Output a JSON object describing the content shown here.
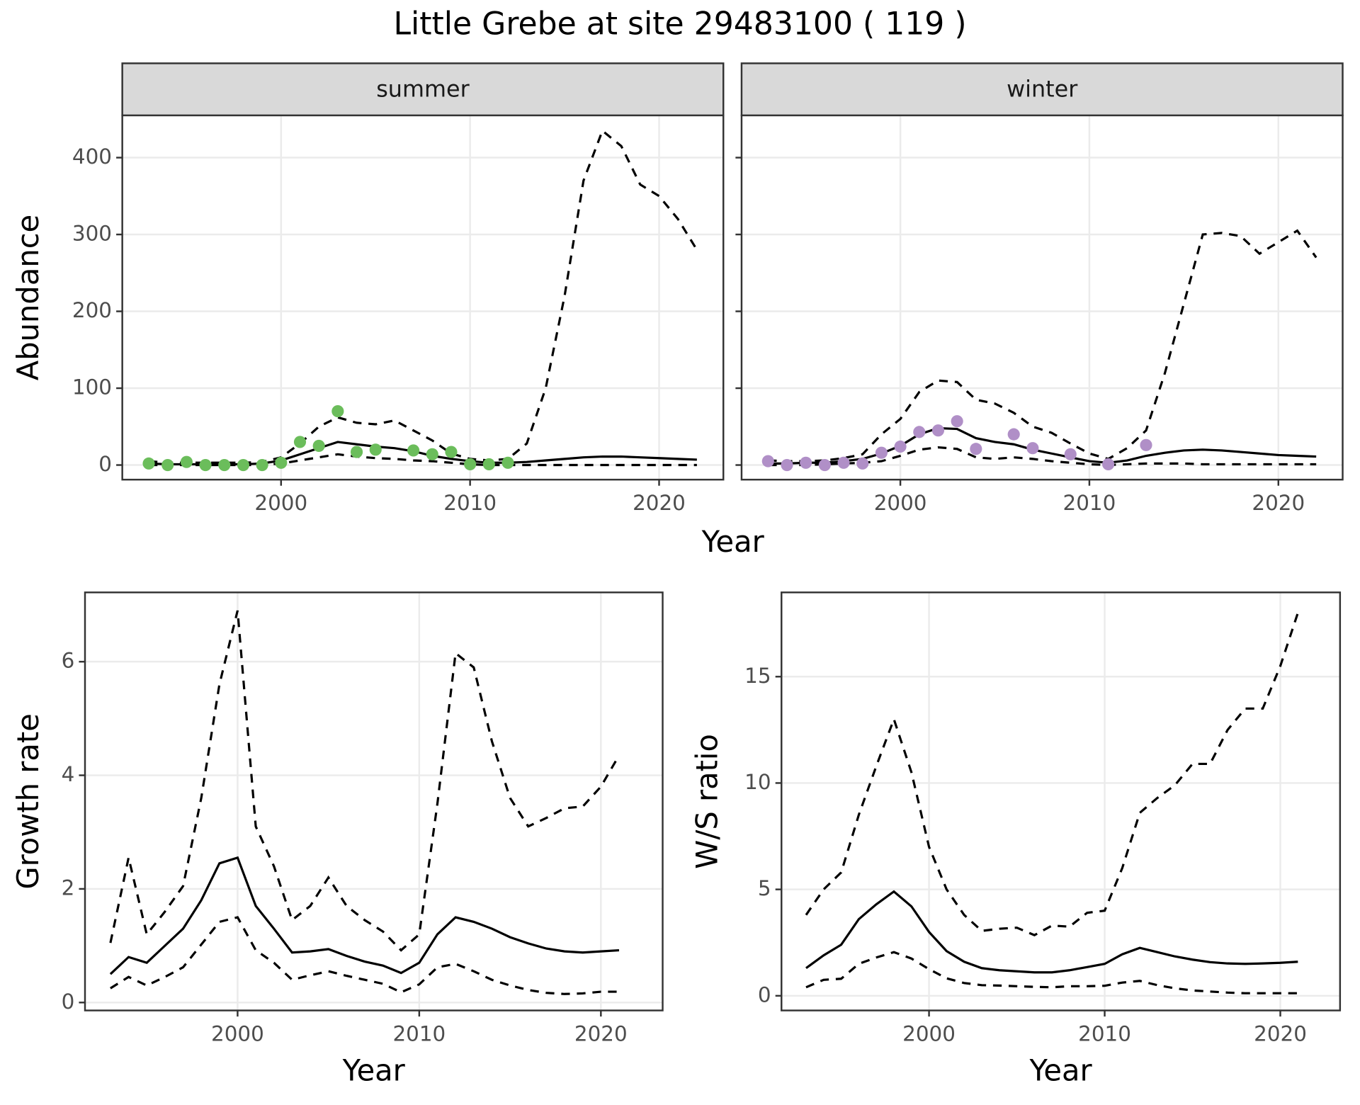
{
  "title": "Little Grebe at site 29483100 ( 119 )",
  "chart_data": [
    {
      "type": "line",
      "panel_title": "summer",
      "ylabel": "Abundance",
      "xlabel": "Year",
      "x": [
        1993,
        1994,
        1995,
        1996,
        1997,
        1998,
        1999,
        2000,
        2001,
        2002,
        2003,
        2004,
        2005,
        2006,
        2007,
        2008,
        2009,
        2010,
        2011,
        2012,
        2013,
        2014,
        2015,
        2016,
        2017,
        2018,
        2019,
        2020,
        2021,
        2022
      ],
      "xlim": [
        1991.6,
        2023.4
      ],
      "ylim": [
        -19,
        455
      ],
      "xticks": [
        2000,
        2010,
        2020
      ],
      "yticks": [
        0,
        100,
        200,
        300,
        400
      ],
      "grid": true,
      "series": [
        {
          "color": "#000000",
          "linestyle": "solid",
          "values": [
            2,
            1,
            1,
            1,
            1,
            1,
            2,
            6,
            14,
            22,
            30,
            27,
            24,
            22,
            18,
            12,
            8,
            5,
            3,
            3,
            4,
            6,
            8,
            10,
            11,
            11,
            10,
            9,
            8,
            7
          ]
        },
        {
          "color": "#000000",
          "linestyle": "dashed",
          "values": [
            5,
            3,
            3,
            3,
            3,
            3,
            4,
            10,
            28,
            50,
            62,
            55,
            53,
            58,
            45,
            32,
            15,
            8,
            6,
            8,
            28,
            100,
            220,
            370,
            435,
            415,
            365,
            350,
            320,
            280
          ]
        },
        {
          "color": "#000000",
          "linestyle": "dashed",
          "values": [
            0,
            0,
            0,
            0,
            0,
            0,
            0,
            2,
            6,
            10,
            14,
            11,
            9,
            8,
            6,
            5,
            3,
            1,
            0,
            0,
            0,
            0,
            0,
            0,
            0,
            0,
            0,
            0,
            0,
            0
          ]
        },
        {
          "color": "#6BBD5B",
          "marker": "circle",
          "values": [
            2,
            0,
            4,
            0,
            0,
            0,
            0,
            3,
            30,
            25,
            70,
            17,
            20,
            null,
            19,
            14,
            17,
            1,
            1,
            3,
            null,
            null,
            null,
            null,
            null,
            null,
            null,
            null,
            null,
            null
          ]
        }
      ]
    },
    {
      "type": "line",
      "panel_title": "winter",
      "x": [
        1993,
        1994,
        1995,
        1996,
        1997,
        1998,
        1999,
        2000,
        2001,
        2002,
        2003,
        2004,
        2005,
        2006,
        2007,
        2008,
        2009,
        2010,
        2011,
        2012,
        2013,
        2014,
        2015,
        2016,
        2017,
        2018,
        2019,
        2020,
        2021,
        2022
      ],
      "xlim": [
        1991.6,
        2023.4
      ],
      "ylim": [
        -19,
        455
      ],
      "xticks": [
        2000,
        2010,
        2020
      ],
      "yticks": [
        0,
        100,
        200,
        300,
        400
      ],
      "grid": true,
      "series": [
        {
          "color": "#000000",
          "linestyle": "solid",
          "values": [
            2,
            2,
            3,
            3,
            5,
            8,
            15,
            25,
            40,
            48,
            47,
            35,
            30,
            27,
            20,
            15,
            10,
            5,
            3,
            6,
            12,
            16,
            19,
            20,
            19,
            17,
            15,
            13,
            12,
            11
          ]
        },
        {
          "color": "#000000",
          "linestyle": "dashed",
          "values": [
            6,
            5,
            5,
            6,
            9,
            14,
            40,
            60,
            95,
            110,
            108,
            85,
            80,
            68,
            50,
            42,
            28,
            15,
            8,
            22,
            45,
            120,
            210,
            300,
            302,
            298,
            275,
            290,
            305,
            270
          ]
        },
        {
          "color": "#000000",
          "linestyle": "dashed",
          "values": [
            0,
            0,
            0,
            1,
            2,
            3,
            5,
            12,
            20,
            23,
            21,
            10,
            8,
            10,
            8,
            5,
            3,
            1,
            0,
            1,
            2,
            2,
            2,
            1,
            1,
            1,
            1,
            1,
            1,
            1
          ]
        },
        {
          "color": "#B08FC7",
          "marker": "circle",
          "values": [
            5,
            0,
            3,
            0,
            3,
            2,
            16,
            24,
            43,
            45,
            57,
            21,
            null,
            40,
            22,
            null,
            14,
            null,
            1,
            null,
            26,
            null,
            null,
            null,
            null,
            null,
            null,
            null,
            null,
            null
          ]
        }
      ]
    },
    {
      "type": "line",
      "ylabel": "Growth rate",
      "xlabel": "Year",
      "x": [
        1993,
        1994,
        1995,
        1996,
        1997,
        1998,
        1999,
        2000,
        2001,
        2002,
        2003,
        2004,
        2005,
        2006,
        2007,
        2008,
        2009,
        2010,
        2011,
        2012,
        2013,
        2014,
        2015,
        2016,
        2017,
        2018,
        2019,
        2020,
        2021
      ],
      "xlim": [
        1991.6,
        2023.4
      ],
      "ylim": [
        -0.14,
        7.22
      ],
      "xticks": [
        2000,
        2010,
        2020
      ],
      "yticks": [
        0,
        2,
        4,
        6
      ],
      "grid": true,
      "series": [
        {
          "color": "#000000",
          "linestyle": "solid",
          "values": [
            0.5,
            0.8,
            0.7,
            1.0,
            1.3,
            1.8,
            2.45,
            2.55,
            1.7,
            1.3,
            0.88,
            0.9,
            0.94,
            0.82,
            0.72,
            0.65,
            0.52,
            0.7,
            1.2,
            1.5,
            1.42,
            1.3,
            1.15,
            1.04,
            0.95,
            0.9,
            0.88,
            0.9,
            0.92
          ]
        },
        {
          "color": "#000000",
          "linestyle": "dashed",
          "values": [
            1.05,
            2.55,
            1.2,
            1.6,
            2.05,
            3.6,
            5.6,
            6.9,
            3.1,
            2.4,
            1.45,
            1.7,
            2.2,
            1.7,
            1.45,
            1.25,
            0.92,
            1.2,
            3.5,
            6.15,
            5.9,
            4.6,
            3.6,
            3.1,
            3.25,
            3.42,
            3.45,
            3.8,
            4.35
          ]
        },
        {
          "color": "#000000",
          "linestyle": "dashed",
          "values": [
            0.25,
            0.45,
            0.3,
            0.45,
            0.62,
            1.02,
            1.42,
            1.5,
            0.92,
            0.7,
            0.4,
            0.48,
            0.55,
            0.47,
            0.4,
            0.33,
            0.18,
            0.32,
            0.62,
            0.68,
            0.55,
            0.4,
            0.3,
            0.22,
            0.17,
            0.15,
            0.16,
            0.19,
            0.19
          ]
        }
      ]
    },
    {
      "type": "line",
      "ylabel": "W/S ratio",
      "xlabel": "Year",
      "x": [
        1993,
        1994,
        1995,
        1996,
        1997,
        1998,
        1999,
        2000,
        2001,
        2002,
        2003,
        2004,
        2005,
        2006,
        2007,
        2008,
        2009,
        2010,
        2011,
        2012,
        2013,
        2014,
        2015,
        2016,
        2017,
        2018,
        2019,
        2020,
        2021
      ],
      "xlim": [
        1991.6,
        2023.4
      ],
      "ylim": [
        -0.69,
        18.96
      ],
      "xticks": [
        2000,
        2010,
        2020
      ],
      "yticks": [
        0,
        5,
        10,
        15
      ],
      "grid": true,
      "series": [
        {
          "color": "#000000",
          "linestyle": "solid",
          "values": [
            1.3,
            1.9,
            2.4,
            3.6,
            4.3,
            4.9,
            4.2,
            3.0,
            2.1,
            1.6,
            1.3,
            1.2,
            1.15,
            1.1,
            1.1,
            1.2,
            1.35,
            1.5,
            1.95,
            2.25,
            2.05,
            1.85,
            1.7,
            1.58,
            1.52,
            1.5,
            1.52,
            1.55,
            1.6
          ]
        },
        {
          "color": "#000000",
          "linestyle": "dashed",
          "values": [
            3.8,
            5.0,
            5.8,
            8.5,
            10.8,
            13.0,
            10.5,
            7.0,
            5.0,
            3.8,
            3.05,
            3.15,
            3.2,
            2.85,
            3.3,
            3.25,
            3.9,
            4.0,
            6.0,
            8.6,
            9.3,
            9.9,
            10.9,
            10.9,
            12.5,
            13.5,
            13.5,
            15.5,
            18.0
          ]
        },
        {
          "color": "#000000",
          "linestyle": "dashed",
          "values": [
            0.4,
            0.75,
            0.8,
            1.5,
            1.8,
            2.05,
            1.75,
            1.25,
            0.82,
            0.6,
            0.5,
            0.48,
            0.45,
            0.42,
            0.4,
            0.45,
            0.45,
            0.47,
            0.62,
            0.7,
            0.5,
            0.35,
            0.25,
            0.2,
            0.15,
            0.12,
            0.12,
            0.12,
            0.12
          ]
        }
      ]
    }
  ]
}
